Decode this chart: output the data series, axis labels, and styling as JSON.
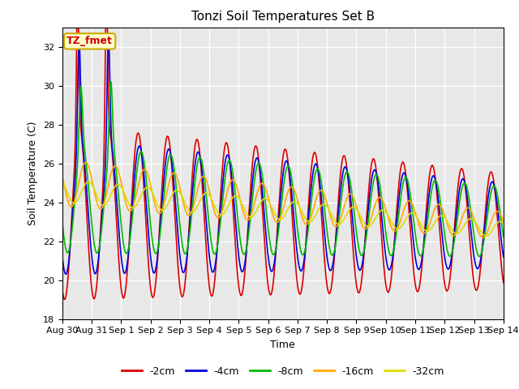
{
  "title": "Tonzi Soil Temperatures Set B",
  "xlabel": "Time",
  "ylabel": "Soil Temperature (C)",
  "ylim": [
    18,
    33
  ],
  "yticks": [
    18,
    20,
    22,
    24,
    26,
    28,
    30,
    32
  ],
  "date_labels": [
    "Aug 30",
    "Aug 31",
    "Sep 1",
    "Sep 2",
    "Sep 3",
    "Sep 4",
    "Sep 5",
    "Sep 6",
    "Sep 7",
    "Sep 8",
    "Sep 9",
    "Sep 10",
    "Sep 11",
    "Sep 12",
    "Sep 13",
    "Sep 14"
  ],
  "annotation_text": "TZ_fmet",
  "annotation_bg": "#ffffcc",
  "annotation_border": "#ccaa00",
  "annotation_color": "#cc0000",
  "fig_bg": "#ffffff",
  "plot_bg": "#e8e8e8",
  "colors": {
    "-2cm": "#dd0000",
    "-4cm": "#0000dd",
    "-8cm": "#00bb00",
    "-16cm": "#ffaa00",
    "-32cm": "#dddd00"
  },
  "legend_labels": [
    "-2cm",
    "-4cm",
    "-8cm",
    "-16cm",
    "-32cm"
  ]
}
